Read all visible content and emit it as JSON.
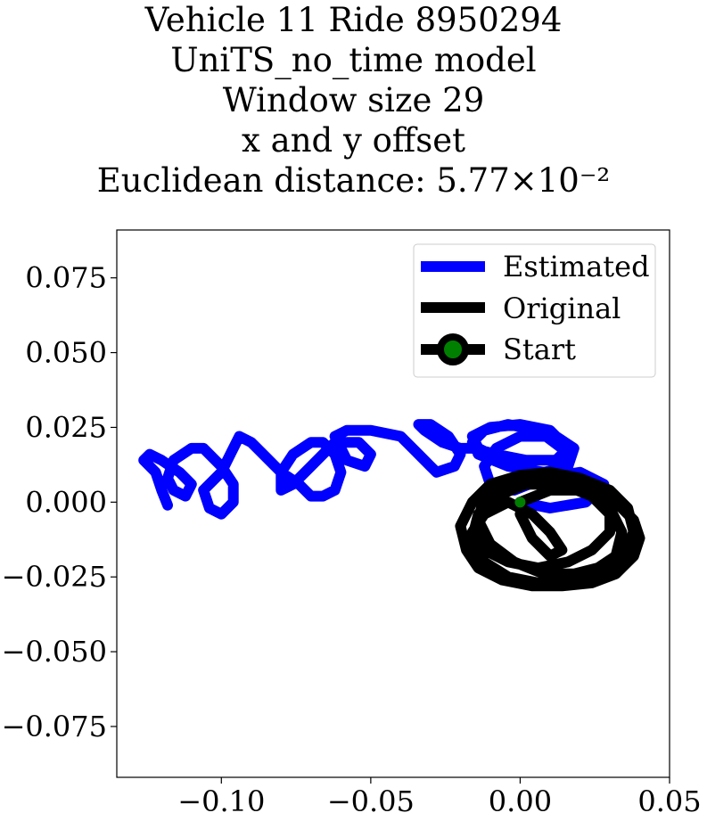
{
  "chart_data": {
    "type": "line",
    "title_lines": [
      "Vehicle 11 Ride 8950294",
      "UniTS_no_time model",
      "Window size 29",
      "x and y offset",
      "Euclidean distance: 5.77×10⁻²"
    ],
    "xlim": [
      -0.135,
      0.05
    ],
    "ylim": [
      -0.092,
      0.091
    ],
    "x_ticks": [
      -0.1,
      -0.05,
      0.0,
      0.05
    ],
    "x_tick_labels": [
      "−0.10",
      "−0.05",
      "0.00",
      "0.05"
    ],
    "y_ticks": [
      0.075,
      0.05,
      0.025,
      0.0,
      -0.025,
      -0.05,
      -0.075
    ],
    "y_tick_labels": [
      "0.075",
      "0.050",
      "0.025",
      "0.000",
      "−0.025",
      "−0.050",
      "−0.075"
    ],
    "grid": false,
    "legend_position": "top-right",
    "colors": {
      "estimated": "#0000ff",
      "original": "#000000",
      "start": "#008000"
    },
    "series": [
      {
        "name": "Estimated",
        "x": [
          0.0,
          0.01,
          0.022,
          0.028,
          0.02,
          0.008,
          -0.002,
          -0.01,
          -0.012,
          -0.008,
          0.0,
          0.012,
          0.018,
          0.016,
          0.008,
          -0.004,
          -0.014,
          -0.016,
          -0.012,
          -0.004,
          0.006,
          0.014,
          0.016,
          0.012,
          0.004,
          -0.006,
          -0.014,
          -0.016,
          -0.01,
          0.0,
          0.01,
          0.016,
          0.012,
          0.002,
          -0.008,
          -0.016,
          -0.02,
          -0.026,
          -0.032,
          -0.034,
          -0.03,
          -0.024,
          -0.02,
          -0.022,
          -0.028,
          -0.03,
          -0.034,
          -0.04,
          -0.05,
          -0.058,
          -0.062,
          -0.06,
          -0.058,
          -0.052,
          -0.05,
          -0.054,
          -0.062,
          -0.066,
          -0.07,
          -0.076,
          -0.08,
          -0.08,
          -0.076,
          -0.07,
          -0.066,
          -0.062,
          -0.06,
          -0.062,
          -0.066,
          -0.07,
          -0.074,
          -0.08,
          -0.086,
          -0.09,
          -0.094,
          -0.096,
          -0.1,
          -0.106,
          -0.104,
          -0.1,
          -0.096,
          -0.096,
          -0.1,
          -0.104,
          -0.106,
          -0.11,
          -0.116,
          -0.118,
          -0.116,
          -0.112,
          -0.11,
          -0.114,
          -0.12,
          -0.124,
          -0.126,
          -0.122,
          -0.12,
          -0.118
        ],
        "y": [
          0.0,
          -0.002,
          0.0,
          0.006,
          0.01,
          0.008,
          0.004,
          0.006,
          0.012,
          0.018,
          0.022,
          0.022,
          0.018,
          0.012,
          0.01,
          0.012,
          0.016,
          0.02,
          0.024,
          0.026,
          0.024,
          0.018,
          0.012,
          0.008,
          0.01,
          0.014,
          0.018,
          0.022,
          0.025,
          0.026,
          0.024,
          0.018,
          0.014,
          0.014,
          0.016,
          0.018,
          0.018,
          0.02,
          0.024,
          0.026,
          0.026,
          0.022,
          0.016,
          0.012,
          0.01,
          0.012,
          0.016,
          0.022,
          0.024,
          0.024,
          0.022,
          0.018,
          0.014,
          0.012,
          0.016,
          0.02,
          0.02,
          0.016,
          0.012,
          0.006,
          0.004,
          0.01,
          0.016,
          0.02,
          0.02,
          0.016,
          0.01,
          0.004,
          0.002,
          0.002,
          0.006,
          0.01,
          0.016,
          0.02,
          0.022,
          0.018,
          0.01,
          0.004,
          -0.002,
          -0.004,
          0.0,
          0.006,
          0.012,
          0.016,
          0.018,
          0.018,
          0.014,
          0.008,
          0.004,
          0.002,
          0.006,
          0.01,
          0.014,
          0.016,
          0.014,
          0.01,
          0.004,
          -0.001
        ]
      },
      {
        "name": "Original",
        "x": [
          0.0,
          0.01,
          0.022,
          0.032,
          0.038,
          0.04,
          0.038,
          0.032,
          0.024,
          0.014,
          0.004,
          -0.006,
          -0.014,
          -0.018,
          -0.02,
          -0.016,
          -0.01,
          0.0,
          0.01,
          0.02,
          0.03,
          0.036,
          0.038,
          0.034,
          0.026,
          0.016,
          0.006,
          -0.004,
          -0.012,
          -0.016,
          -0.014,
          -0.008,
          0.002,
          0.012,
          0.022,
          0.03,
          0.034,
          0.032,
          0.026,
          0.018,
          0.008,
          -0.002,
          -0.01,
          -0.014,
          -0.012,
          -0.006,
          0.004,
          0.014,
          0.024,
          0.03,
          0.03,
          0.024,
          0.016,
          0.006,
          -0.004,
          -0.012,
          -0.016,
          -0.012,
          -0.004,
          0.004,
          0.01,
          0.014,
          0.01,
          0.004,
          0.0
        ],
        "y": [
          0.0,
          0.004,
          0.004,
          0.0,
          -0.006,
          -0.012,
          -0.018,
          -0.024,
          -0.027,
          -0.028,
          -0.028,
          -0.026,
          -0.022,
          -0.016,
          -0.008,
          0.0,
          0.006,
          0.009,
          0.01,
          0.008,
          0.004,
          -0.002,
          -0.01,
          -0.018,
          -0.024,
          -0.027,
          -0.027,
          -0.025,
          -0.02,
          -0.012,
          -0.004,
          0.002,
          0.006,
          0.006,
          0.004,
          -0.002,
          -0.01,
          -0.018,
          -0.022,
          -0.024,
          -0.024,
          -0.02,
          -0.014,
          -0.006,
          0.002,
          0.006,
          0.008,
          0.006,
          0.002,
          -0.004,
          -0.01,
          -0.016,
          -0.02,
          -0.022,
          -0.02,
          -0.016,
          -0.01,
          -0.004,
          0.0,
          -0.004,
          -0.01,
          -0.016,
          -0.018,
          -0.012,
          -0.004
        ]
      }
    ],
    "start_point": {
      "name": "Start",
      "x": 0.0,
      "y": 0.0
    }
  }
}
